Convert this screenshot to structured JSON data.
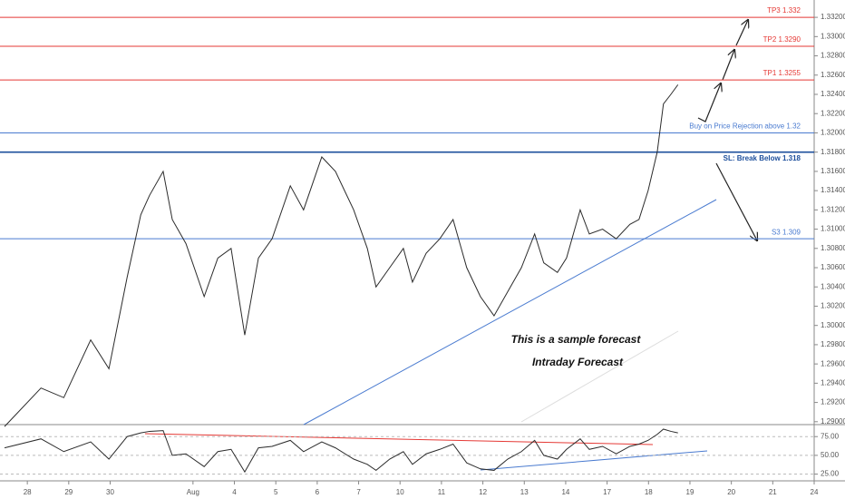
{
  "chart_data": [
    {
      "type": "line",
      "x": [
        -0.55,
        0.33,
        0.88,
        1.53,
        1.97,
        2.41,
        2.74,
        2.95,
        3.28,
        3.5,
        3.83,
        4.27,
        4.6,
        4.92,
        5.25,
        5.58,
        5.91,
        6.35,
        6.67,
        7.11,
        7.44,
        7.88,
        8.21,
        8.42,
        8.75,
        9.08,
        9.3,
        9.63,
        9.96,
        10.28,
        10.61,
        10.94,
        11.27,
        11.6,
        11.93,
        12.25,
        12.47,
        12.8,
        13.02,
        13.35,
        13.57,
        13.89,
        14.22,
        14.55,
        14.77,
        14.99,
        15.21,
        15.36,
        15.54,
        15.71
      ],
      "series": [
        {
          "color": "#2b2b2b",
          "values": [
            1.2895,
            1.2935,
            1.2925,
            1.2985,
            1.2955,
            1.305,
            1.3115,
            1.3135,
            1.316,
            1.311,
            1.3085,
            1.303,
            1.307,
            1.308,
            1.299,
            1.307,
            1.309,
            1.3145,
            1.312,
            1.3175,
            1.316,
            1.312,
            1.308,
            1.304,
            1.306,
            1.308,
            1.3045,
            1.3075,
            1.309,
            1.311,
            1.306,
            1.303,
            1.301,
            1.3035,
            1.306,
            1.3095,
            1.3065,
            1.3055,
            1.307,
            1.312,
            1.3095,
            1.31,
            1.309,
            1.3105,
            1.311,
            1.314,
            1.318,
            1.323,
            1.324,
            1.325
          ]
        }
      ],
      "xlim": [
        -0.66,
        19
      ],
      "xticks": [
        {
          "value": 0,
          "label": "28"
        },
        {
          "value": 1,
          "label": "29"
        },
        {
          "value": 2,
          "label": "30"
        },
        {
          "value": 4,
          "label": "Aug"
        },
        {
          "value": 5,
          "label": "4"
        },
        {
          "value": 6,
          "label": "5"
        },
        {
          "value": 7,
          "label": "6"
        },
        {
          "value": 8,
          "label": "7"
        },
        {
          "value": 9,
          "label": "10"
        },
        {
          "value": 10,
          "label": "11"
        },
        {
          "value": 11,
          "label": "12"
        },
        {
          "value": 12,
          "label": "13"
        },
        {
          "value": 13,
          "label": "14"
        },
        {
          "value": 14,
          "label": "17"
        },
        {
          "value": 15,
          "label": "18"
        },
        {
          "value": 16,
          "label": "19"
        },
        {
          "value": 17,
          "label": "20"
        },
        {
          "value": 18,
          "label": "21"
        },
        {
          "value": 19,
          "label": "24"
        }
      ],
      "ylim": [
        1.2897,
        1.3338
      ],
      "yticks": [
        {
          "value": 1.29,
          "label": "1.29000"
        },
        {
          "value": 1.292,
          "label": "1.29200"
        },
        {
          "value": 1.294,
          "label": "1.29400"
        },
        {
          "value": 1.296,
          "label": "1.29600"
        },
        {
          "value": 1.298,
          "label": "1.29800"
        },
        {
          "value": 1.3,
          "label": "1.30000"
        },
        {
          "value": 1.302,
          "label": "1.30200"
        },
        {
          "value": 1.304,
          "label": "1.30400"
        },
        {
          "value": 1.306,
          "label": "1.30600"
        },
        {
          "value": 1.308,
          "label": "1.30800"
        },
        {
          "value": 1.31,
          "label": "1.31000"
        },
        {
          "value": 1.312,
          "label": "1.31200"
        },
        {
          "value": 1.314,
          "label": "1.31400"
        },
        {
          "value": 1.316,
          "label": "1.31600"
        },
        {
          "value": 1.318,
          "label": "1.31800"
        },
        {
          "value": 1.32,
          "label": "1.32000"
        },
        {
          "value": 1.322,
          "label": "1.32200"
        },
        {
          "value": 1.324,
          "label": "1.32400"
        },
        {
          "value": 1.326,
          "label": "1.32600"
        },
        {
          "value": 1.328,
          "label": "1.32800"
        },
        {
          "value": 1.33,
          "label": "1.33000"
        },
        {
          "value": 1.332,
          "label": "1.33200"
        }
      ],
      "levels": [
        {
          "label": "TP3 1.332",
          "value": 1.332,
          "color": "#e53935"
        },
        {
          "label": "TP2 1.3290",
          "value": 1.329,
          "color": "#e53935"
        },
        {
          "label": "TP1 1.3255",
          "value": 1.3255,
          "color": "#e53935"
        },
        {
          "label": "Buy on Price Rejection above 1.32",
          "value": 1.32,
          "color": "#4a7bd0"
        },
        {
          "label": "SL: Break Below 1.318",
          "value": 1.318,
          "color": "#1d4f9c"
        },
        {
          "label": "S3 1.309",
          "value": 1.309,
          "color": "#4a7bd0"
        }
      ],
      "annotations": [
        "This is a sample forecast",
        "Intraday Forecast"
      ]
    },
    {
      "type": "line",
      "x": [
        -0.55,
        0.33,
        0.88,
        1.53,
        1.97,
        2.41,
        2.74,
        2.95,
        3.28,
        3.5,
        3.83,
        4.27,
        4.6,
        4.92,
        5.25,
        5.58,
        5.91,
        6.35,
        6.67,
        7.11,
        7.44,
        7.88,
        8.21,
        8.42,
        8.75,
        9.08,
        9.3,
        9.63,
        9.96,
        10.28,
        10.61,
        10.94,
        11.27,
        11.6,
        11.93,
        12.25,
        12.47,
        12.8,
        13.02,
        13.35,
        13.57,
        13.89,
        14.22,
        14.55,
        14.77,
        14.99,
        15.21,
        15.36,
        15.54,
        15.71
      ],
      "series": [
        {
          "color": "#2b2b2b",
          "values": [
            60,
            72,
            55,
            68,
            45,
            75,
            80,
            82,
            83,
            50,
            52,
            35,
            55,
            58,
            28,
            60,
            62,
            70,
            55,
            68,
            60,
            45,
            38,
            30,
            45,
            55,
            38,
            52,
            58,
            65,
            40,
            32,
            30,
            45,
            55,
            70,
            50,
            45,
            58,
            72,
            58,
            62,
            52,
            62,
            65,
            70,
            78,
            85,
            82,
            80
          ]
        }
      ],
      "xlim": [
        -0.66,
        19
      ],
      "ylim": [
        16,
        91
      ],
      "yticks": [
        {
          "value": 75,
          "label": "75.00"
        },
        {
          "value": 50,
          "label": "50.00"
        },
        {
          "value": 25,
          "label": "25.00"
        }
      ]
    }
  ]
}
